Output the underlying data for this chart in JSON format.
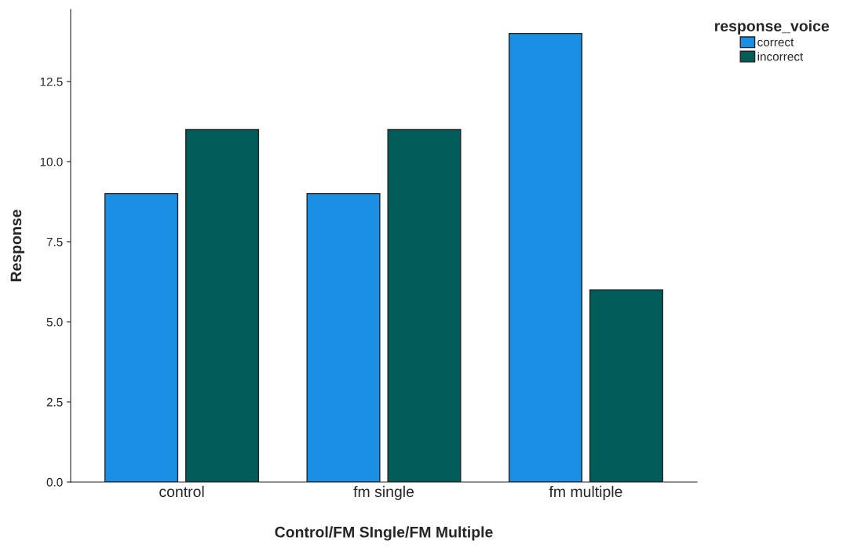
{
  "chart_data": {
    "type": "bar",
    "xlabel": "Control/FM SIngle/FM Multiple",
    "ylabel": "Response",
    "legend_title": "response_voice",
    "categories": [
      "control",
      "fm single",
      "fm multiple"
    ],
    "series": [
      {
        "name": "correct",
        "color": "#1a8fe3",
        "values": [
          9,
          9,
          14
        ]
      },
      {
        "name": "incorrect",
        "color": "#015c5a",
        "values": [
          11,
          11,
          6
        ]
      }
    ],
    "ylim": [
      0,
      14.75
    ],
    "yticks": [
      {
        "value": 0,
        "label": "0.0"
      },
      {
        "value": 2.5,
        "label": "2.5"
      },
      {
        "value": 5,
        "label": "5.0"
      },
      {
        "value": 7.5,
        "label": "7.5"
      },
      {
        "value": 10,
        "label": "10.0"
      },
      {
        "value": 12.5,
        "label": "12.5"
      }
    ],
    "grid": false,
    "legend": "top right"
  }
}
